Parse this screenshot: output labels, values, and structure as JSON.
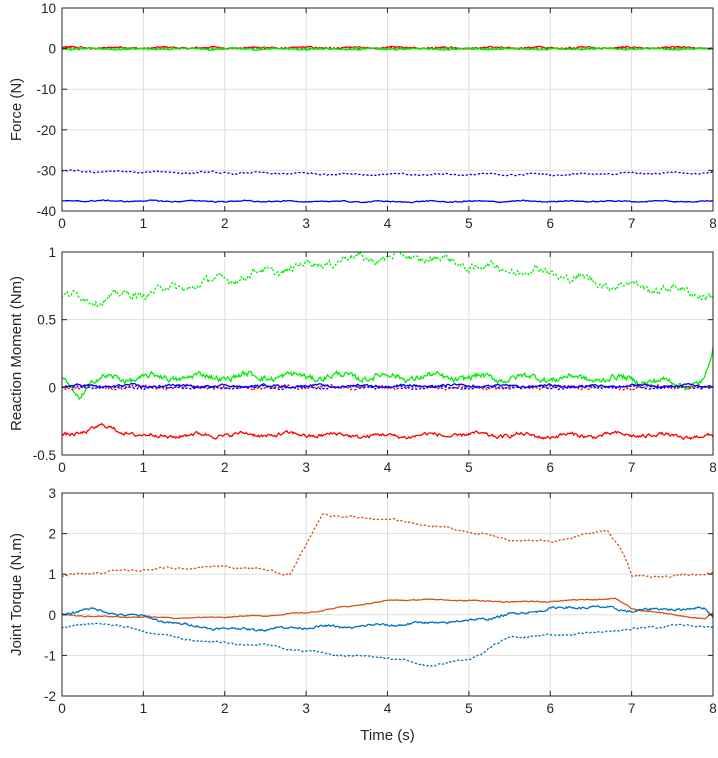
{
  "chart_data": [
    {
      "type": "line",
      "xlabel": "",
      "ylabel": "Force (N)",
      "xlim": [
        0,
        8
      ],
      "ylim": [
        -40,
        10
      ],
      "xticks": [
        0,
        1,
        2,
        3,
        4,
        5,
        6,
        7,
        8
      ],
      "yticks": [
        -40,
        -30,
        -20,
        -10,
        0,
        10
      ],
      "grid": true,
      "series": [
        {
          "color": "#ff0000",
          "style": "solid",
          "x": [
            0,
            8
          ],
          "y": [
            0.2,
            0.2
          ],
          "noise": 0.35
        },
        {
          "color": "#ff0000",
          "style": "dotted",
          "x": [
            0,
            8
          ],
          "y": [
            0.1,
            0.1
          ],
          "noise": 0.3
        },
        {
          "color": "#00ee00",
          "style": "solid",
          "x": [
            0,
            8
          ],
          "y": [
            -0.1,
            -0.1
          ],
          "noise": 0.3
        },
        {
          "color": "#00ee00",
          "style": "dotted",
          "x": [
            0,
            8
          ],
          "y": [
            0.0,
            0.0
          ],
          "noise": 0.3
        },
        {
          "color": "#0000ff",
          "style": "dotted",
          "x": [
            0,
            2,
            4,
            6,
            8
          ],
          "y": [
            -30.2,
            -30.6,
            -31.0,
            -31.0,
            -30.5
          ],
          "noise": 0.35
        },
        {
          "color": "#0000ff",
          "style": "solid",
          "x": [
            0,
            2,
            4,
            6,
            8
          ],
          "y": [
            -37.5,
            -37.6,
            -37.7,
            -37.6,
            -37.6
          ],
          "noise": 0.25
        }
      ]
    },
    {
      "type": "line",
      "xlabel": "",
      "ylabel": "Reaction Moment (Nm)",
      "xlim": [
        0,
        8
      ],
      "ylim": [
        -0.5,
        1
      ],
      "xticks": [
        0,
        1,
        2,
        3,
        4,
        5,
        6,
        7,
        8
      ],
      "yticks": [
        -0.5,
        0,
        0.5,
        1
      ],
      "grid": true,
      "series": [
        {
          "color": "#00ee00",
          "style": "dotted",
          "x": [
            0,
            0.5,
            1,
            1.5,
            2,
            2.5,
            3,
            3.5,
            4,
            4.5,
            5,
            5.5,
            6,
            6.5,
            7,
            7.5,
            8
          ],
          "y": [
            0.67,
            0.65,
            0.7,
            0.74,
            0.8,
            0.85,
            0.9,
            0.95,
            0.96,
            0.96,
            0.9,
            0.87,
            0.85,
            0.78,
            0.75,
            0.72,
            0.68
          ],
          "noise": 0.05
        },
        {
          "color": "#00ee00",
          "style": "solid",
          "x": [
            0,
            0.2,
            0.4,
            1,
            2,
            3,
            4,
            5,
            6,
            7,
            7.7,
            7.9,
            8
          ],
          "y": [
            0.06,
            -0.07,
            0.06,
            0.07,
            0.08,
            0.08,
            0.08,
            0.07,
            0.07,
            0.06,
            0.02,
            0.05,
            0.28
          ],
          "noise": 0.04
        },
        {
          "color": "#ff0000",
          "style": "dotted",
          "x": [
            0,
            8
          ],
          "y": [
            0.0,
            0.0
          ],
          "noise": 0.02
        },
        {
          "color": "#0000ff",
          "style": "solid",
          "x": [
            0,
            8
          ],
          "y": [
            0.01,
            0.01
          ],
          "noise": 0.015
        },
        {
          "color": "#0000ff",
          "style": "dotted",
          "x": [
            0,
            8
          ],
          "y": [
            0.0,
            0.0
          ],
          "noise": 0.015
        },
        {
          "color": "#ff0000",
          "style": "solid",
          "x": [
            0,
            0.5,
            1,
            2,
            3,
            4,
            5,
            6,
            7,
            8
          ],
          "y": [
            -0.36,
            -0.29,
            -0.36,
            -0.35,
            -0.35,
            -0.36,
            -0.35,
            -0.36,
            -0.35,
            -0.37
          ],
          "noise": 0.025
        }
      ]
    },
    {
      "type": "line",
      "xlabel": "Time (s)",
      "ylabel": "Joint Torque (N.m)",
      "xlim": [
        0,
        8
      ],
      "ylim": [
        -2,
        3
      ],
      "xticks": [
        0,
        1,
        2,
        3,
        4,
        5,
        6,
        7,
        8
      ],
      "yticks": [
        -2,
        -1,
        0,
        1,
        2,
        3
      ],
      "grid": true,
      "series": [
        {
          "color": "#d95319",
          "style": "dotted",
          "x": [
            0,
            0.5,
            1,
            1.5,
            2,
            2.5,
            2.8,
            3,
            3.2,
            3.5,
            4,
            4.5,
            5,
            5.5,
            6,
            6.5,
            6.7,
            6.9,
            7,
            7.5,
            8
          ],
          "y": [
            0.95,
            1.05,
            1.12,
            1.15,
            1.2,
            1.1,
            1.0,
            1.7,
            2.5,
            2.4,
            2.35,
            2.2,
            2.05,
            1.85,
            1.8,
            2.0,
            2.1,
            1.5,
            0.95,
            0.95,
            1.05
          ],
          "noise": 0.04
        },
        {
          "color": "#d95319",
          "style": "solid",
          "x": [
            0,
            0.5,
            1,
            1.5,
            2,
            2.5,
            3,
            3.5,
            4,
            4.5,
            5,
            5.5,
            6,
            6.5,
            6.8,
            7,
            7.5,
            7.9,
            8
          ],
          "y": [
            0.0,
            -0.05,
            -0.05,
            -0.08,
            -0.05,
            -0.02,
            0.05,
            0.2,
            0.35,
            0.38,
            0.35,
            0.32,
            0.33,
            0.38,
            0.4,
            0.15,
            0.0,
            -0.1,
            0.05
          ],
          "noise": 0.02
        },
        {
          "color": "#0072bd",
          "style": "solid",
          "x": [
            0,
            0.3,
            0.6,
            1,
            1.5,
            2,
            2.5,
            3,
            3.5,
            4,
            4.5,
            5,
            5.5,
            6,
            6.5,
            7,
            7.5,
            7.9,
            8
          ],
          "y": [
            0.0,
            0.15,
            0.05,
            -0.05,
            -0.25,
            -0.35,
            -0.35,
            -0.3,
            -0.3,
            -0.25,
            -0.2,
            -0.15,
            0.0,
            0.15,
            0.2,
            0.1,
            0.15,
            0.15,
            -0.05
          ],
          "noise": 0.05
        },
        {
          "color": "#0072bd",
          "style": "dotted",
          "x": [
            0,
            0.5,
            1,
            1.5,
            2,
            2.5,
            3,
            3.5,
            4,
            4.5,
            5,
            5.5,
            6,
            6.5,
            7,
            7.5,
            8
          ],
          "y": [
            -0.3,
            -0.2,
            -0.4,
            -0.6,
            -0.7,
            -0.75,
            -0.9,
            -1.0,
            -1.05,
            -1.25,
            -1.1,
            -0.55,
            -0.5,
            -0.45,
            -0.35,
            -0.25,
            -0.3
          ],
          "noise": 0.04
        }
      ]
    }
  ]
}
